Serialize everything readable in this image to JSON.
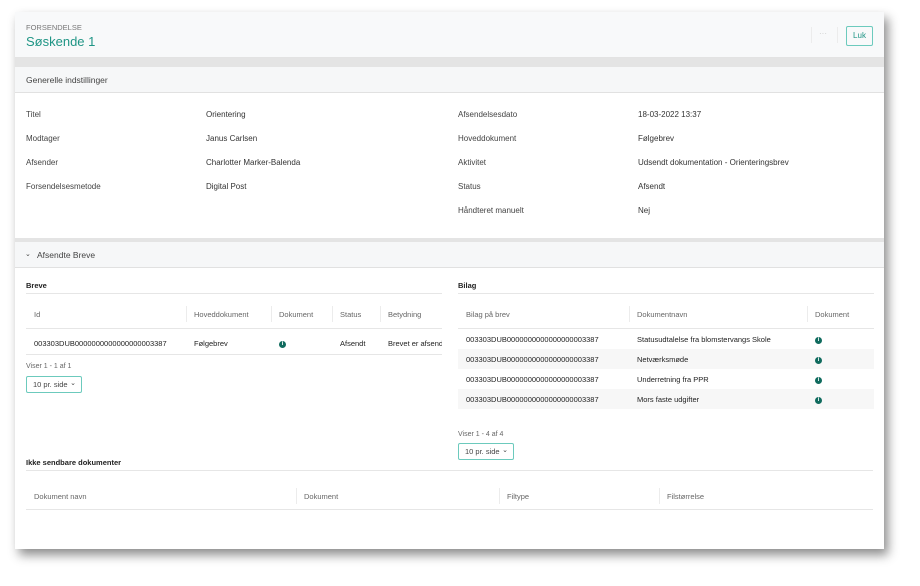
{
  "header": {
    "overline": "FORSENDELSE",
    "title": "Søskende 1",
    "more_label": "···",
    "close_label": "Luk"
  },
  "general": {
    "title": "Generelle indstillinger",
    "left": [
      {
        "label": "Titel",
        "value": "Orientering"
      },
      {
        "label": "Modtager",
        "value": "Janus Carlsen",
        "link": true
      },
      {
        "label": "Afsender",
        "value": "Charlotter Marker-Balenda"
      },
      {
        "label": "Forsendelsesmetode",
        "value": "Digital Post"
      }
    ],
    "right": [
      {
        "label": "Afsendelsesdato",
        "value": "18-03-2022 13:37"
      },
      {
        "label": "Hoveddokument",
        "value": "Følgebrev",
        "link": true
      },
      {
        "label": "Aktivitet",
        "value": "Udsendt dokumentation - Orienteringsbrev",
        "link": true
      },
      {
        "label": "Status",
        "value": "Afsendt"
      },
      {
        "label": "Håndteret manuelt",
        "value": "Nej"
      }
    ]
  },
  "sent": {
    "title": "Afsendte Breve",
    "breve": {
      "title": "Breve",
      "columns": [
        "Id",
        "Hoveddokument",
        "Dokument",
        "Status",
        "Betydning"
      ],
      "rows": [
        {
          "id": "003303DUB0000000000000000003387",
          "main": "Følgebrev",
          "status": "Afsendt",
          "meaning": "Brevet er afsendt"
        }
      ],
      "paging": "Viser 1 - 1 af 1",
      "page_size": "10 pr. side"
    },
    "bilag": {
      "title": "Bilag",
      "columns": [
        "Bilag på brev",
        "Dokumentnavn",
        "Dokument"
      ],
      "rows": [
        {
          "id": "003303DUB0000000000000000003387",
          "name": "Statusudtalelse fra blomstervangs Skole"
        },
        {
          "id": "003303DUB0000000000000000003387",
          "name": "Netværksmøde"
        },
        {
          "id": "003303DUB0000000000000000003387",
          "name": "Underretning fra PPR"
        },
        {
          "id": "003303DUB0000000000000000003387",
          "name": "Mors faste udgifter"
        }
      ],
      "paging": "Viser 1 - 4 af 4",
      "page_size": "10 pr. side"
    },
    "unsendable": {
      "title": "Ikke sendbare dokumenter",
      "columns": [
        "Dokument navn",
        "Dokument",
        "Filtype",
        "Filstørrelse"
      ]
    }
  },
  "colors": {
    "accent": "#1f9585",
    "icon": "#106b5e"
  },
  "icons": {
    "info": "info-circle-icon",
    "collapse": "chevron-down-icon",
    "select": "chevron-down-icon"
  }
}
